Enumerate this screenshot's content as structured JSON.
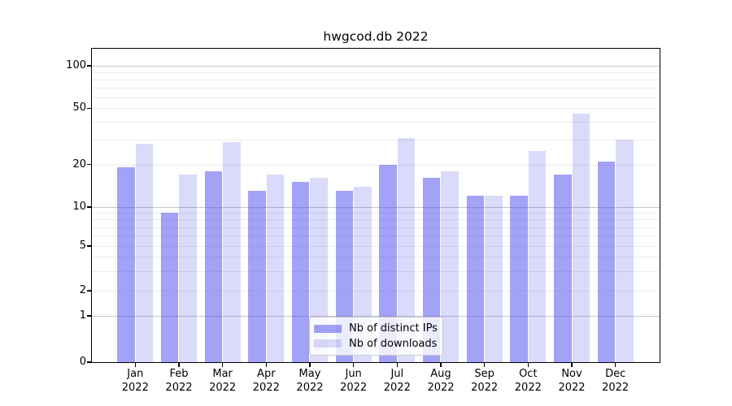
{
  "title": "hwgcod.db 2022",
  "chart_data": {
    "type": "bar",
    "title": "hwgcod.db 2022",
    "categories": [
      "Jan 2022",
      "Feb 2022",
      "Mar 2022",
      "Apr 2022",
      "May 2022",
      "Jun 2022",
      "Jul 2022",
      "Aug 2022",
      "Sep 2022",
      "Oct 2022",
      "Nov 2022",
      "Dec 2022"
    ],
    "series": [
      {
        "name": "Nb of distinct IPs",
        "color": "rgba(85,85,238,0.55)",
        "values": [
          19,
          9,
          18,
          13,
          15,
          13,
          20,
          16,
          12,
          12,
          17,
          21
        ]
      },
      {
        "name": "Nb of downloads",
        "color": "rgba(85,85,238,0.22)",
        "values": [
          28,
          17,
          29,
          17,
          16,
          14,
          31,
          18,
          12,
          25,
          46,
          30
        ]
      }
    ],
    "yscale": "symlog",
    "ylim": [
      0,
      100
    ],
    "yticks": [
      100,
      50,
      20,
      10,
      5,
      2,
      1,
      0
    ],
    "xlabel": "",
    "ylabel": "",
    "grid": true,
    "legend_position": "lower center"
  },
  "colors": {
    "bar_ips": "rgba(85,85,238,0.55)",
    "bar_ips_rendered": "#a3a3f1",
    "bar_downloads": "rgba(85,85,238,0.22)",
    "bar_downloads_rendered": "#d9d9f8",
    "grid_major": "#c6c6c6",
    "grid_minor": "#ececec",
    "axis": "#000000"
  },
  "legend": {
    "items": [
      {
        "label": "Nb of distinct IPs",
        "color": "rgba(85,85,238,0.55)"
      },
      {
        "label": "Nb of downloads",
        "color": "rgba(85,85,238,0.22)"
      }
    ]
  }
}
